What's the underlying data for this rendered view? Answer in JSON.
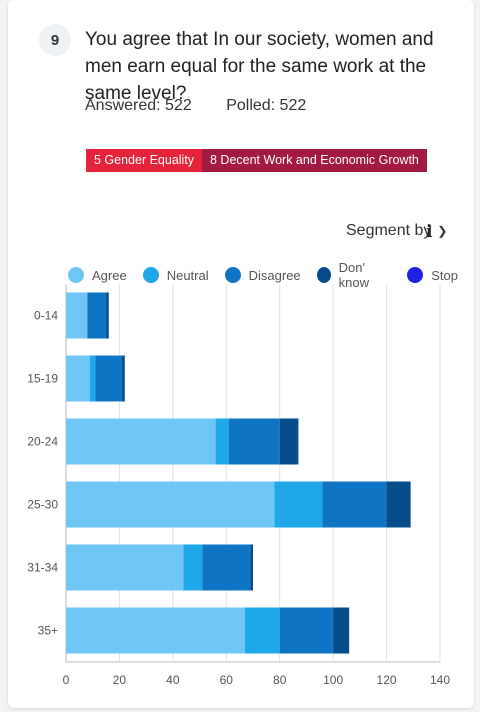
{
  "question": {
    "number": "9",
    "text": "You agree that In our society, women and men earn equal for the same work at the same level?",
    "answered": "Answered: 522",
    "polled": "Polled: 522"
  },
  "tags": [
    {
      "label": "5 Gender Equality",
      "color": "#e5243b"
    },
    {
      "label": "8 Decent Work and Economic Growth",
      "color": "#a21942"
    }
  ],
  "segment_label": "Segment by",
  "chart_data": {
    "type": "bar",
    "orientation": "horizontal",
    "stacked": true,
    "categories": [
      "0-14",
      "15-19",
      "20-24",
      "25-30",
      "31-34",
      "35+"
    ],
    "series": [
      {
        "name": "Agree",
        "color": "#6ec6f5",
        "values": [
          8,
          9,
          56,
          78,
          44,
          67
        ]
      },
      {
        "name": "Neutral",
        "color": "#1ea8ea",
        "values": [
          0,
          2,
          5,
          18,
          7,
          13
        ]
      },
      {
        "name": "Disagree",
        "color": "#0f74c4",
        "values": [
          7,
          10,
          19,
          24,
          18,
          20
        ]
      },
      {
        "name": "Don' know",
        "color": "#064b8a",
        "values": [
          1,
          1,
          7,
          9,
          1,
          6
        ]
      },
      {
        "name": "Stop",
        "color": "#2020e0",
        "values": [
          0,
          0,
          0,
          0,
          0,
          0
        ]
      }
    ],
    "xlim": [
      0,
      140
    ],
    "xticks": [
      "0",
      "20",
      "40",
      "60",
      "80",
      "100",
      "120",
      "140"
    ],
    "grid": true,
    "legend": "top"
  }
}
